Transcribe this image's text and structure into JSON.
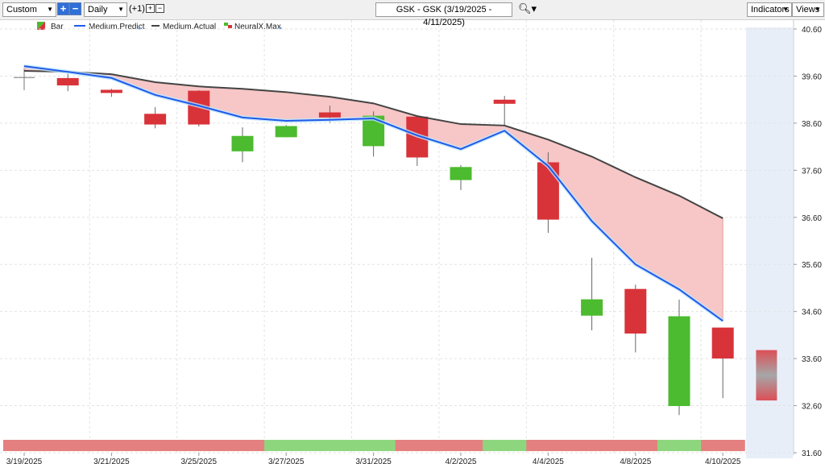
{
  "header": {
    "range": "Custom",
    "interval": "Daily",
    "offset": "(+1)",
    "symbol": "GSK - GSK (3/19/2025 - 4/11/2025)",
    "indicators": "Indicators",
    "views": "Views"
  },
  "chart_data": {
    "type": "candlestick",
    "categories": [
      "3/19/2025",
      null,
      "3/21/2025",
      null,
      "3/25/2025",
      null,
      "3/27/2025",
      null,
      "3/31/2025",
      null,
      "4/2/2025",
      null,
      "4/4/2025",
      null,
      "4/8/2025",
      null,
      "4/10/2025",
      null
    ],
    "series": [
      {
        "name": "Bar",
        "up_color": "#4cbb2f",
        "down_color": "#d9333a",
        "open": [
          39.57,
          39.55,
          39.3,
          38.79,
          39.28,
          38.01,
          38.31,
          38.82,
          38.12,
          38.73,
          37.4,
          39.09,
          37.76,
          34.52,
          35.07,
          32.6,
          34.25,
          null
        ],
        "high": [
          39.75,
          39.65,
          39.33,
          38.94,
          39.3,
          38.51,
          38.56,
          38.97,
          38.85,
          38.75,
          37.71,
          39.18,
          37.98,
          35.74,
          35.17,
          34.85,
          34.25,
          null
        ],
        "low": [
          39.3,
          39.28,
          39.16,
          38.49,
          38.53,
          37.77,
          38.3,
          38.61,
          37.89,
          37.69,
          37.18,
          38.55,
          36.27,
          34.2,
          33.73,
          32.4,
          32.76,
          null
        ],
        "close": [
          39.57,
          39.41,
          39.25,
          38.58,
          38.58,
          38.32,
          38.53,
          38.73,
          38.75,
          37.88,
          37.66,
          39.02,
          36.56,
          34.85,
          34.14,
          34.49,
          33.61,
          null
        ]
      },
      {
        "name": "Medium.Predict",
        "color": "#1f5ae8",
        "values": [
          39.81,
          39.69,
          39.56,
          39.2,
          38.97,
          38.72,
          38.65,
          38.67,
          38.7,
          38.34,
          38.05,
          38.44,
          37.69,
          36.52,
          35.6,
          35.07,
          34.4,
          null
        ]
      },
      {
        "name": "Medium.Actual",
        "color": "#444444",
        "values": [
          39.71,
          39.69,
          39.64,
          39.47,
          39.38,
          39.33,
          39.26,
          39.16,
          39.02,
          38.75,
          38.58,
          38.55,
          38.25,
          37.89,
          37.45,
          37.06,
          36.58,
          null
        ]
      },
      {
        "name": "NeuralX.Max",
        "color": "#d9333a",
        "high": [
          null,
          null,
          null,
          null,
          null,
          null,
          null,
          null,
          null,
          null,
          null,
          null,
          null,
          null,
          null,
          null,
          null,
          33.78
        ],
        "low": [
          null,
          null,
          null,
          null,
          null,
          null,
          null,
          null,
          null,
          null,
          null,
          null,
          null,
          null,
          null,
          null,
          null,
          32.71
        ]
      }
    ],
    "fill_color": "#f7c6c6",
    "band_colors": [
      "#e58080",
      "#e58080",
      "#e58080",
      "#e58080",
      "#e58080",
      "#e58080",
      "#8ed67e",
      "#8ed67e",
      "#8ed67e",
      "#e58080",
      "#e58080",
      "#8ed67e",
      "#e58080",
      "#e58080",
      "#e58080",
      "#8ed67e",
      "#e58080",
      null
    ],
    "ylim": [
      31.6,
      40.6
    ],
    "yticks": [
      {
        "value": 40.6,
        "label": "40.60"
      },
      {
        "value": 39.6,
        "label": "39.60"
      },
      {
        "value": 38.6,
        "label": "38.60"
      },
      {
        "value": 37.6,
        "label": "37.60"
      },
      {
        "value": 36.6,
        "label": "36.60"
      },
      {
        "value": 35.6,
        "label": "35.60"
      },
      {
        "value": 34.6,
        "label": "34.60"
      },
      {
        "value": 33.6,
        "label": "33.60"
      },
      {
        "value": 32.6,
        "label": "32.60"
      },
      {
        "value": 31.6,
        "label": "31.60"
      }
    ],
    "grid": true
  }
}
